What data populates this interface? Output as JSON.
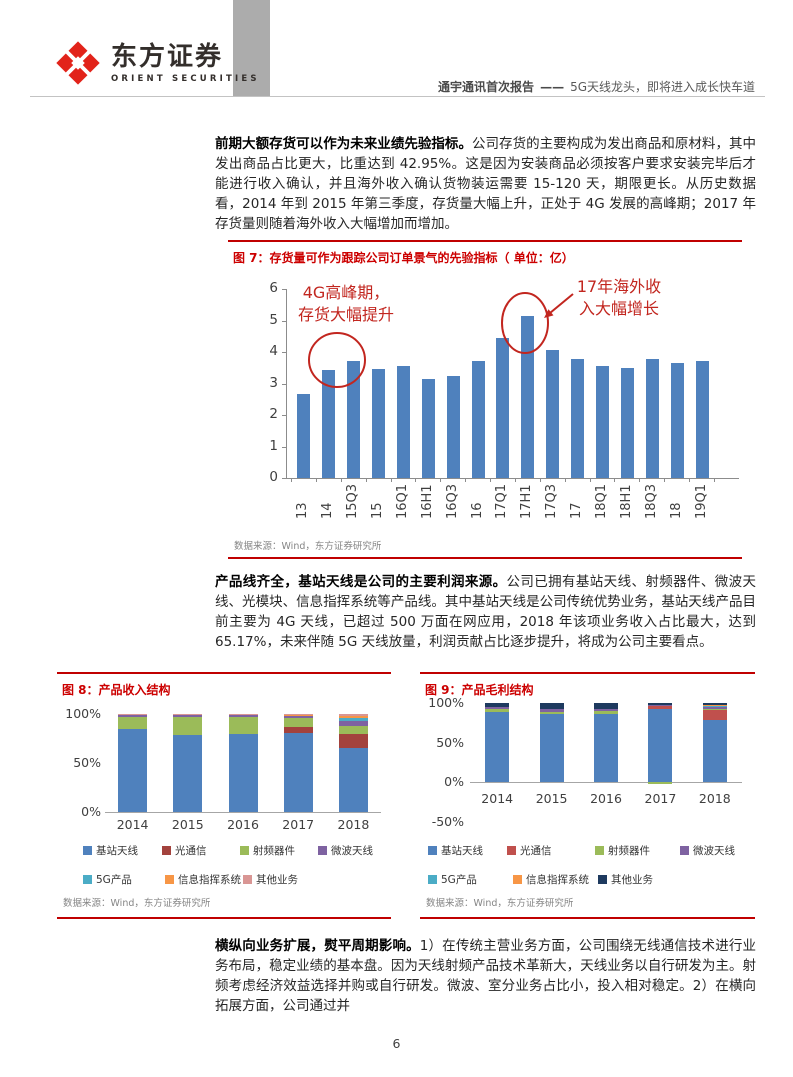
{
  "header": {
    "logo_cn": "东方证券",
    "logo_en": "ORIENT SECURITIES",
    "report_title": "通宇通讯首次报告",
    "report_dash": "——",
    "report_subtitle": "5G天线龙头，即将进入成长快车道",
    "logo_red": "#E2231A"
  },
  "body": {
    "p1": {
      "lead": "前期大额存货可以作为未来业绩先验指标。",
      "text": "公司存货的主要构成为发出商品和原材料，其中发出商品占比更大，比重达到 42.95%。这是因为安装商品必须按客户要求安装完毕后才能进行收入确认，并且海外收入确认货物装运需要 15-120 天，期限更长。从历史数据看，2014 年到 2015 年第三季度，存货量大幅上升，正处于 4G 发展的高峰期；2017 年存货量则随着海外收入大幅增加而增加。"
    },
    "p2": {
      "lead": "产品线齐全，基站天线是公司的主要利润来源。",
      "text": "公司已拥有基站天线、射频器件、微波天线、光模块、信息指挥系统等产品线。其中基站天线是公司传统优势业务，基站天线产品目前主要为 4G 天线，已超过 500 万面在网应用，2018 年该项业务收入占比最大，达到 65.17%，未来伴随 5G 天线放量，利润贡献占比逐步提升，将成为公司主要看点。"
    },
    "p3": {
      "lead": "横纵向业务扩展，熨平周期影响。",
      "text": "1）在传统主营业务方面，公司围绕无线通信技术进行业务布局，稳定业绩的基本盘。因为天线射频产品技术革新大，天线业务以自行研发为主。射频考虑经济效益选择并购或自行研发。微波、室分业务占比小，投入相对稳定。2）在横向拓展方面，公司通过并"
    }
  },
  "figure7": {
    "label": "图 7：存货量可作为跟踪公司订单景气的先验指标（ 单位：亿）",
    "source": "数据来源：Wind，东方证券研究所",
    "annotations": {
      "left": [
        "4G高峰期，",
        "存货大幅提升"
      ],
      "right": [
        "17年海外收",
        "入大幅增长"
      ],
      "color": "#C2261F"
    },
    "chart_data": {
      "type": "bar",
      "categories": [
        "13",
        "14",
        "15Q3",
        "15",
        "16Q1",
        "16H1",
        "16Q3",
        "16",
        "17Q1",
        "17H1",
        "17Q3",
        "17",
        "18Q1",
        "18H1",
        "18Q3",
        "18",
        "19Q1"
      ],
      "values": [
        2.67,
        3.42,
        3.7,
        3.47,
        3.55,
        3.15,
        3.25,
        3.73,
        4.46,
        5.16,
        4.07,
        3.78,
        3.57,
        3.49,
        3.78,
        3.66,
        3.73
      ],
      "title": "",
      "xlabel": "",
      "ylabel": "",
      "ylim": [
        0,
        6
      ],
      "ytick_values": [
        0,
        1,
        2,
        3,
        4,
        5,
        6
      ],
      "ytick_labels": [
        "0",
        "1",
        "2",
        "3",
        "4",
        "5",
        "6"
      ],
      "bar_color": "#4F81BD",
      "grid": false,
      "legend": "none"
    }
  },
  "figure8": {
    "label": "图 8：产品收入结构",
    "source": "数据来源：Wind，东方证券研究所",
    "chart_data": {
      "type": "bar",
      "stacked": true,
      "categories": [
        "2014",
        "2015",
        "2016",
        "2017",
        "2018"
      ],
      "series": [
        {
          "name": "基站天线",
          "color": "#4F81BD",
          "values": [
            84.5,
            79,
            80,
            81,
            65.2
          ]
        },
        {
          "name": "光通信",
          "color": "#A3423D",
          "values": [
            0,
            0,
            0,
            5.5,
            14.3
          ]
        },
        {
          "name": "射频器件",
          "color": "#9BBB59",
          "values": [
            12.5,
            17.5,
            16.5,
            9,
            8
          ]
        },
        {
          "name": "微波天线",
          "color": "#7E62A1",
          "values": [
            2.5,
            2.5,
            2.5,
            2.5,
            5
          ]
        },
        {
          "name": "5G产品",
          "color": "#4BACC6",
          "values": [
            0,
            0,
            0,
            0,
            3
          ]
        },
        {
          "name": "信息指挥系统",
          "color": "#F79646",
          "values": [
            0,
            0,
            0,
            1,
            2.5
          ]
        },
        {
          "name": "其他业务",
          "color": "#D99694",
          "values": [
            0.5,
            1,
            1,
            1,
            2
          ]
        }
      ],
      "ylim": [
        0,
        100
      ],
      "ytick_values": [
        0,
        50,
        100
      ],
      "ytick_labels": [
        "0%",
        "50%",
        "100%"
      ],
      "grid": false,
      "legend": "bottom"
    }
  },
  "figure9": {
    "label": "图 9：产品毛利结构",
    "source": "数据来源：Wind，东方证券研究所",
    "chart_data": {
      "type": "bar",
      "stacked": true,
      "categories": [
        "2014",
        "2015",
        "2016",
        "2017",
        "2018"
      ],
      "series": [
        {
          "name": "基站天线",
          "color": "#4F81BD",
          "values": [
            89,
            86,
            86,
            92,
            79
          ]
        },
        {
          "name": "光通信",
          "color": "#C0504D",
          "values": [
            0,
            0,
            0,
            4,
            12
          ]
        },
        {
          "name": "射频器件",
          "color": "#9BBB59",
          "values": [
            3,
            3,
            4,
            -2,
            2
          ]
        },
        {
          "name": "微波天线",
          "color": "#7E62A1",
          "values": [
            3,
            4,
            3,
            1,
            1.5
          ]
        },
        {
          "name": "5G产品",
          "color": "#4BACC6",
          "values": [
            0,
            0,
            0,
            0,
            1.5
          ]
        },
        {
          "name": "信息指挥系统",
          "color": "#F79646",
          "values": [
            0,
            0,
            0,
            0,
            1.5
          ]
        },
        {
          "name": "其他业务",
          "color": "#1E3A5F",
          "values": [
            5,
            7,
            7,
            3,
            2.5
          ]
        }
      ],
      "ylim": [
        -50,
        100
      ],
      "ytick_values": [
        -50,
        0,
        50,
        100
      ],
      "ytick_labels": [
        "-50%",
        "0%",
        "50%",
        "100%"
      ],
      "grid": false,
      "legend": "bottom"
    }
  },
  "footer": {
    "page_number": "6"
  }
}
